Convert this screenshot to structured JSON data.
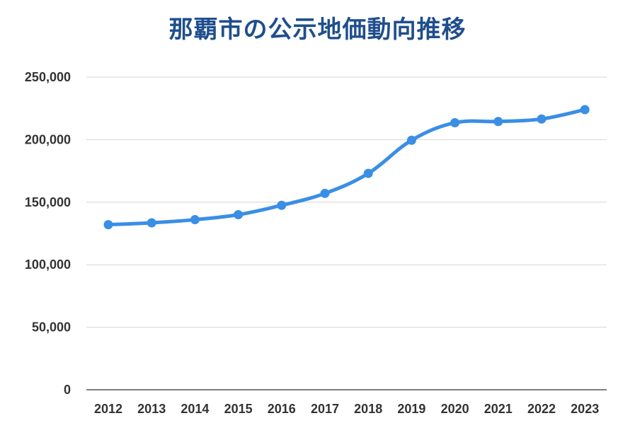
{
  "chart_data": {
    "type": "line",
    "title": "那覇市の公示地価動向推移",
    "categories": [
      "2012",
      "2013",
      "2014",
      "2015",
      "2016",
      "2017",
      "2018",
      "2019",
      "2020",
      "2021",
      "2022",
      "2023"
    ],
    "series": [
      {
        "values": [
          132000,
          133500,
          136000,
          140000,
          147500,
          157000,
          173000,
          199500,
          213500,
          214500,
          216500,
          224000
        ]
      }
    ],
    "ylim": [
      0,
      250000
    ],
    "yticks": [
      0,
      50000,
      100000,
      150000,
      200000,
      250000
    ],
    "ytick_labels": [
      "0",
      "50,000",
      "100,000",
      "150,000",
      "200,000",
      "250,000"
    ],
    "grid": true,
    "line_color": "#3a8ee6",
    "title_color": "#1f4e8c"
  }
}
